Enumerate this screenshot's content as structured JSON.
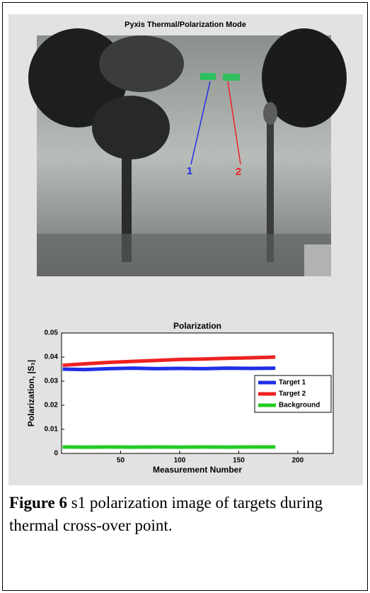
{
  "image_panel": {
    "title": "Pyxis Thermal/Polarization Mode",
    "markers": [
      "1",
      "2"
    ]
  },
  "chart_data": {
    "type": "line",
    "title": "Polarization",
    "x_label": "Measurement Number",
    "y_label": "Polarization, |S₁|",
    "x": [
      1,
      20,
      40,
      60,
      80,
      100,
      120,
      140,
      160,
      181
    ],
    "series": [
      {
        "name": "Target 1",
        "color": "#1f2fe6",
        "values": [
          0.035,
          0.0348,
          0.0352,
          0.0354,
          0.0352,
          0.0353,
          0.0352,
          0.0354,
          0.0353,
          0.0354
        ]
      },
      {
        "name": "Target 2",
        "color": "#ee2222",
        "values": [
          0.0366,
          0.0372,
          0.0378,
          0.0382,
          0.0386,
          0.039,
          0.0392,
          0.0395,
          0.0397,
          0.04
        ]
      },
      {
        "name": "Background",
        "color": "#22cc22",
        "values": [
          0.0027,
          0.0026,
          0.0027,
          0.0026,
          0.0027,
          0.0026,
          0.0027,
          0.0026,
          0.0027,
          0.0027
        ]
      }
    ],
    "xlim": [
      0,
      230
    ],
    "xticks": [
      50,
      100,
      150,
      200
    ],
    "ylim": [
      0,
      0.05
    ],
    "yticks": [
      0,
      0.01,
      0.02,
      0.03,
      0.04,
      0.05
    ],
    "legend": "right"
  },
  "caption": {
    "label": "Figure 6",
    "text": "s1 polarization image of targets during thermal cross-over point."
  }
}
